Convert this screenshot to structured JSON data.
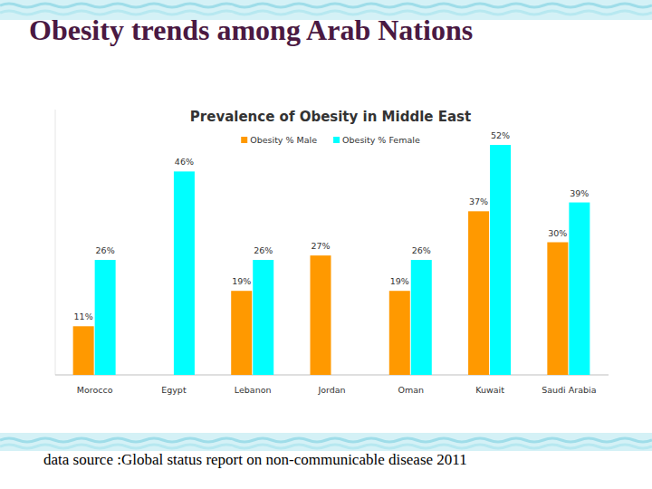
{
  "slide": {
    "title": "Obesity trends among Arab Nations",
    "footer": "data source :Global status report on non-communicable disease 2011"
  },
  "chart_data": {
    "type": "bar",
    "title": "Prevalence of Obesity in Middle East",
    "categories": [
      "Morocco",
      "Egypt",
      "Lebanon",
      "Jordan",
      "Oman",
      "Kuwait",
      "Saudi Arabia"
    ],
    "series": [
      {
        "name": "Obesity % Male",
        "color": "#FF9900",
        "values": [
          11,
          null,
          19,
          27,
          19,
          37,
          30
        ],
        "value_labels": [
          "11%",
          null,
          "19%",
          "27%",
          "19%",
          "37%",
          "30%"
        ]
      },
      {
        "name": "Obesity % Female",
        "color": "#00FFFF",
        "values": [
          26,
          46,
          26,
          null,
          26,
          52,
          39
        ],
        "value_labels": [
          "26%",
          "46%",
          "26%",
          null,
          "26%",
          "52%",
          "39%"
        ]
      }
    ],
    "ylim": [
      0,
      60
    ],
    "grid": false,
    "legend": "top",
    "data_labels": true,
    "tick_labels": "x"
  }
}
